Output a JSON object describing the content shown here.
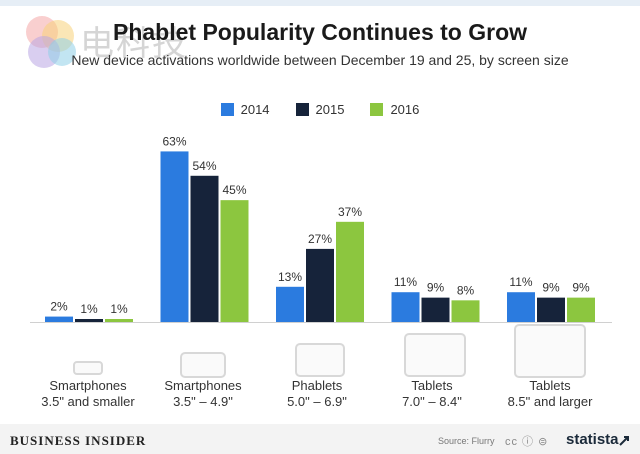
{
  "header": {
    "title": "Phablet Popularity Continues to Grow",
    "subtitle": "New device activations worldwide between December 19 and 25, by screen size"
  },
  "watermark": {
    "text": "电科技"
  },
  "footer": {
    "brand": "BUSINESS INSIDER",
    "source": "Source: Flurry",
    "license": "cc ⓘ ⊜",
    "logo": "statista"
  },
  "colors": {
    "2014": "#2b7bdf",
    "2015": "#16233a",
    "2016": "#8cc63f"
  },
  "chart_data": {
    "type": "bar",
    "title": "Phablet Popularity Continues to Grow",
    "subtitle": "New device activations worldwide between December 19 and 25, by screen size",
    "xlabel": "",
    "ylabel": "",
    "ylim": [
      0,
      65
    ],
    "grid": false,
    "legend": "top-center",
    "categories": [
      {
        "line1": "Smartphones",
        "line2": "3.5\" and smaller",
        "icon": "small-phone-icon"
      },
      {
        "line1": "Smartphones",
        "line2": "3.5\" – 4.9\"",
        "icon": "phone-icon"
      },
      {
        "line1": "Phablets",
        "line2": "5.0\" – 6.9\"",
        "icon": "phablet-icon"
      },
      {
        "line1": "Tablets",
        "line2": "7.0\" – 8.4\"",
        "icon": "small-tablet-icon"
      },
      {
        "line1": "Tablets",
        "line2": "8.5\" and larger",
        "icon": "large-tablet-icon"
      }
    ],
    "series": [
      {
        "name": "2014",
        "values": [
          2,
          63,
          13,
          11,
          11
        ],
        "labels": [
          "2%",
          "63%",
          "13%",
          "11%",
          "11%"
        ]
      },
      {
        "name": "2015",
        "values": [
          1,
          54,
          27,
          9,
          9
        ],
        "labels": [
          "1%",
          "54%",
          "27%",
          "9%",
          "9%"
        ]
      },
      {
        "name": "2016",
        "values": [
          1,
          45,
          37,
          8,
          9
        ],
        "labels": [
          "1%",
          "45%",
          "37%",
          "8%",
          "9%"
        ]
      }
    ]
  }
}
